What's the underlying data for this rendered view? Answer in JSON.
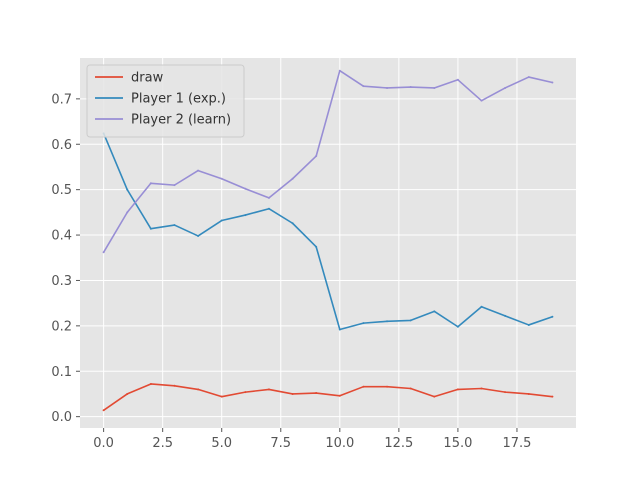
{
  "chart_data": {
    "type": "line",
    "title": "",
    "xlabel": "",
    "ylabel": "",
    "xlim": [
      -1.0,
      20.0
    ],
    "ylim": [
      -0.025,
      0.79
    ],
    "xticks": [
      0.0,
      2.5,
      5.0,
      7.5,
      10.0,
      12.5,
      15.0,
      17.5
    ],
    "xtick_labels": [
      "0.0",
      "2.5",
      "5.0",
      "7.5",
      "10.0",
      "12.5",
      "15.0",
      "17.5"
    ],
    "yticks": [
      0.0,
      0.1,
      0.2,
      0.3,
      0.4,
      0.5,
      0.6,
      0.7
    ],
    "ytick_labels": [
      "0.0",
      "0.1",
      "0.2",
      "0.3",
      "0.4",
      "0.5",
      "0.6",
      "0.7"
    ],
    "grid": true,
    "legend_position": "top-left",
    "x": [
      0,
      1,
      2,
      3,
      4,
      5,
      6,
      7,
      8,
      9,
      10,
      11,
      12,
      13,
      14,
      15,
      16,
      17,
      18,
      19
    ],
    "series": [
      {
        "name": "draw",
        "color": "#E24A33",
        "values": [
          0.014,
          0.05,
          0.072,
          0.068,
          0.06,
          0.044,
          0.054,
          0.06,
          0.05,
          0.052,
          0.046,
          0.066,
          0.066,
          0.062,
          0.044,
          0.06,
          0.062,
          0.054,
          0.05,
          0.044
        ]
      },
      {
        "name": "Player 1 (exp.)",
        "color": "#348ABD",
        "values": [
          0.624,
          0.5,
          0.414,
          0.422,
          0.398,
          0.432,
          0.444,
          0.458,
          0.426,
          0.374,
          0.192,
          0.206,
          0.21,
          0.212,
          0.232,
          0.198,
          0.242,
          0.222,
          0.202,
          0.22
        ]
      },
      {
        "name": "Player 2 (learn)",
        "color": "#988ED5",
        "values": [
          0.362,
          0.45,
          0.514,
          0.51,
          0.542,
          0.524,
          0.502,
          0.482,
          0.524,
          0.574,
          0.762,
          0.728,
          0.724,
          0.726,
          0.724,
          0.742,
          0.696,
          0.724,
          0.748,
          0.736
        ]
      }
    ]
  }
}
